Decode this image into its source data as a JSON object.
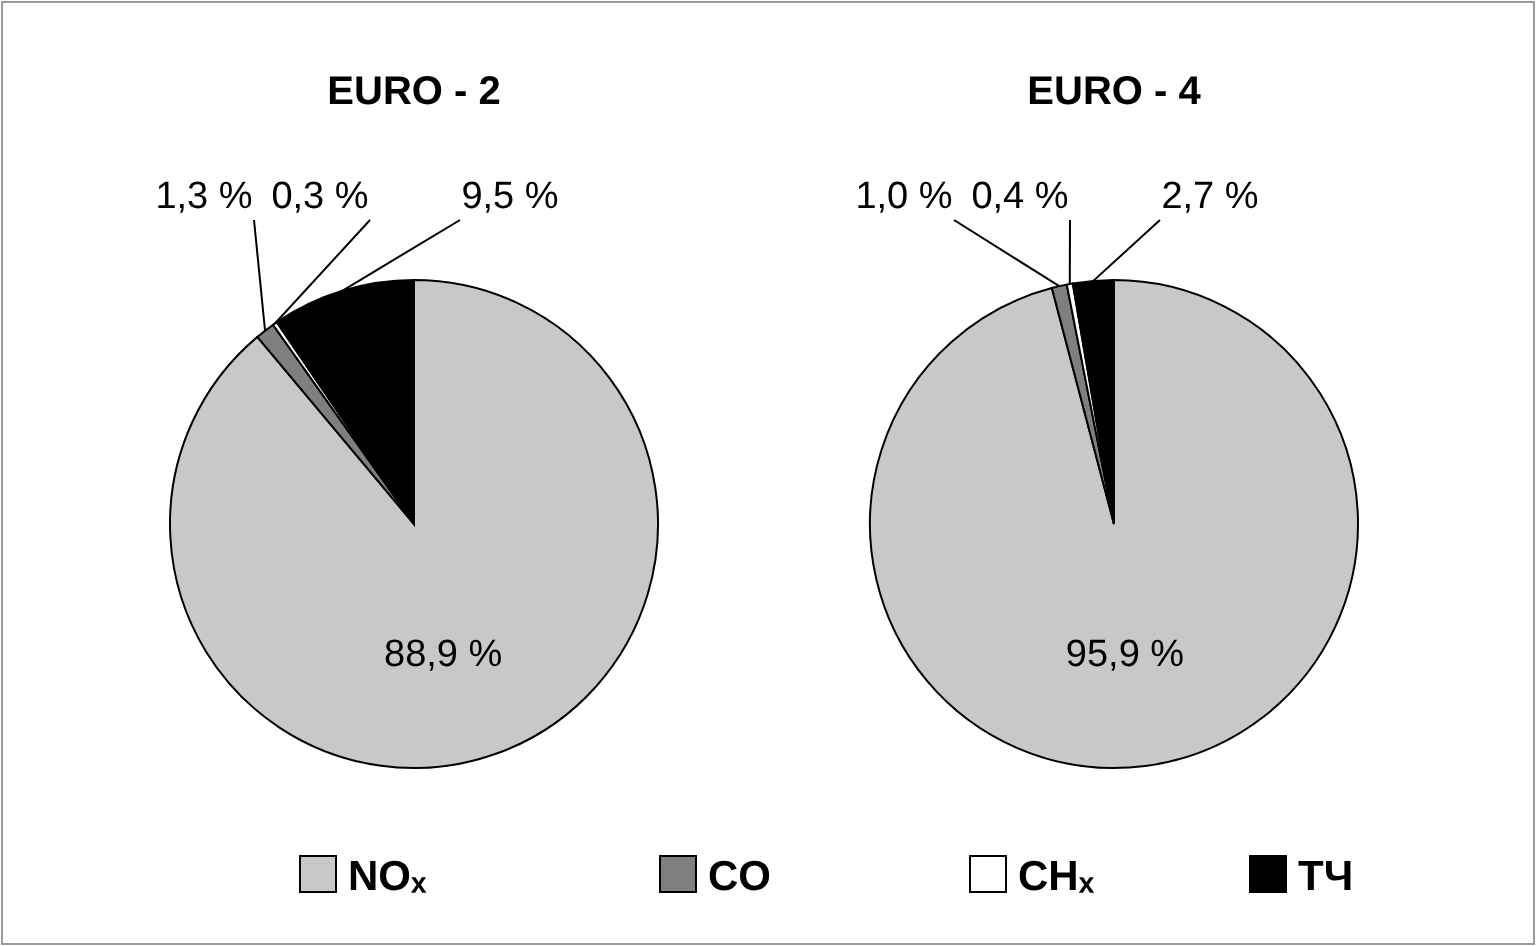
{
  "chart_data": [
    {
      "type": "pie",
      "title": "EURO - 2",
      "categories": [
        "NOₓ",
        "CO",
        "CHₓ",
        "ТЧ"
      ],
      "values": [
        88.9,
        1.3,
        0.3,
        9.5
      ],
      "value_labels": [
        "88,9 %",
        "1,3 %",
        "0,3 %",
        "9,5 %"
      ],
      "colors": [
        "#c8c8c8",
        "#7f7f7f",
        "#ffffff",
        "#000000"
      ],
      "legend": "bottom"
    },
    {
      "type": "pie",
      "title": "EURO - 4",
      "categories": [
        null,
        null,
        null,
        null
      ],
      "values": [
        95.9,
        1.0,
        0.4,
        2.7
      ],
      "value_labels": [
        "95,9 %",
        "1,0 %",
        "0,4 %",
        "2,7 %"
      ],
      "colors": [
        "#c8c8c8",
        "#7f7f7f",
        "#ffffff",
        "#000000"
      ]
    }
  ]
}
